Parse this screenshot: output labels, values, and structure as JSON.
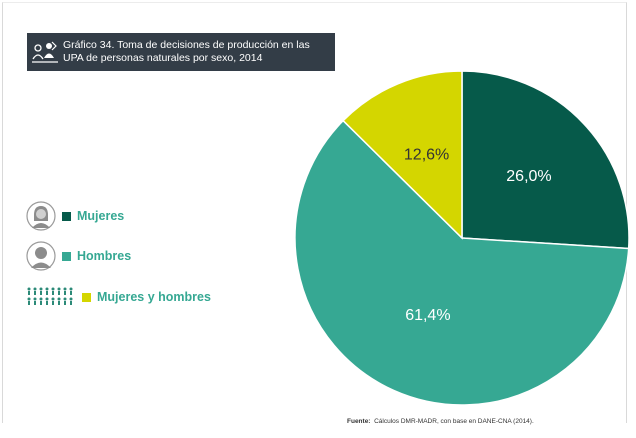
{
  "title": "Gráfico 34. Toma de decisiones de producción en las UPA de personas naturales por sexo, 2014",
  "title_lines": [
    "Gráfico 34. Toma de decisiones de producción en las",
    "UPA de personas naturales por sexo, 2014"
  ],
  "title_icon": "people-chart-icon",
  "legend": {
    "items": [
      {
        "label": "Mujeres",
        "color": "#065a4a",
        "icon": "woman-avatar-icon"
      },
      {
        "label": "Hombres",
        "color": "#36a893",
        "icon": "man-avatar-icon"
      },
      {
        "label": "Mujeres y hombres",
        "color": "#d4d600",
        "icon": "crowd-icon"
      }
    ]
  },
  "chart_data": {
    "type": "pie",
    "title": "Gráfico 34. Toma de decisiones de producción en las UPA de personas naturales por sexo, 2014",
    "categories": [
      "Mujeres",
      "Hombres",
      "Mujeres y hombres"
    ],
    "values": [
      26.0,
      61.4,
      12.6
    ],
    "labels": [
      "26,0%",
      "61,4%",
      "12,6%"
    ],
    "colors": [
      "#065a4a",
      "#36a893",
      "#d4d600"
    ],
    "start": "12 o'clock",
    "direction": "clockwise",
    "legend_position": "left"
  },
  "source": {
    "prefix": "Fuente:",
    "text": "Cálculos DMR-MADR, con base en DANE-CNA (2014)."
  }
}
